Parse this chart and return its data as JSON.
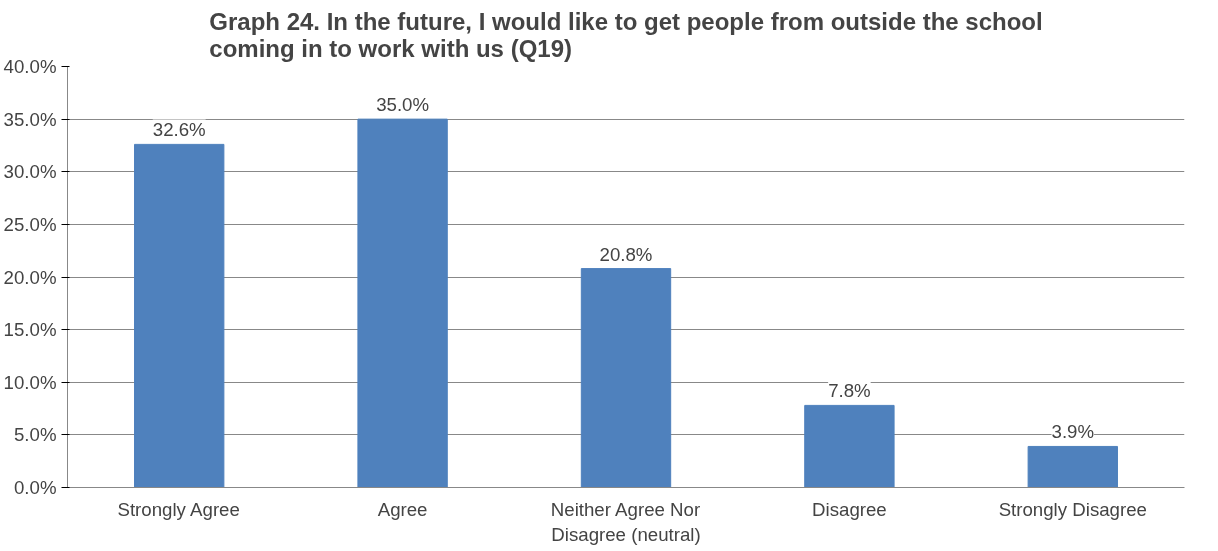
{
  "chart_data": {
    "type": "bar",
    "title": "Graph 24. In the future, I would like to get people from outside the school coming in to work with us (Q19)",
    "categories": [
      "Strongly Agree",
      "Agree",
      "Neither Agree Nor Disagree (neutral)",
      "Disagree",
      "Strongly Disagree"
    ],
    "values": [
      32.6,
      35.0,
      20.8,
      7.8,
      3.9
    ],
    "value_labels": [
      "32.6%",
      "35.0%",
      "20.8%",
      "7.8%",
      "3.9%"
    ],
    "color": "#4f81bd",
    "ylim": [
      0,
      40
    ],
    "yticks": [
      {
        "value": 0,
        "label": "0.0%"
      },
      {
        "value": 5,
        "label": "5.0%"
      },
      {
        "value": 10,
        "label": "10.0%"
      },
      {
        "value": 15,
        "label": "15.0%"
      },
      {
        "value": 20,
        "label": "20.0%"
      },
      {
        "value": 25,
        "label": "25.0%"
      },
      {
        "value": 30,
        "label": "30.0%"
      },
      {
        "value": 35,
        "label": "35.0%"
      },
      {
        "value": 40,
        "label": "40.0%"
      }
    ],
    "grid": "y"
  }
}
